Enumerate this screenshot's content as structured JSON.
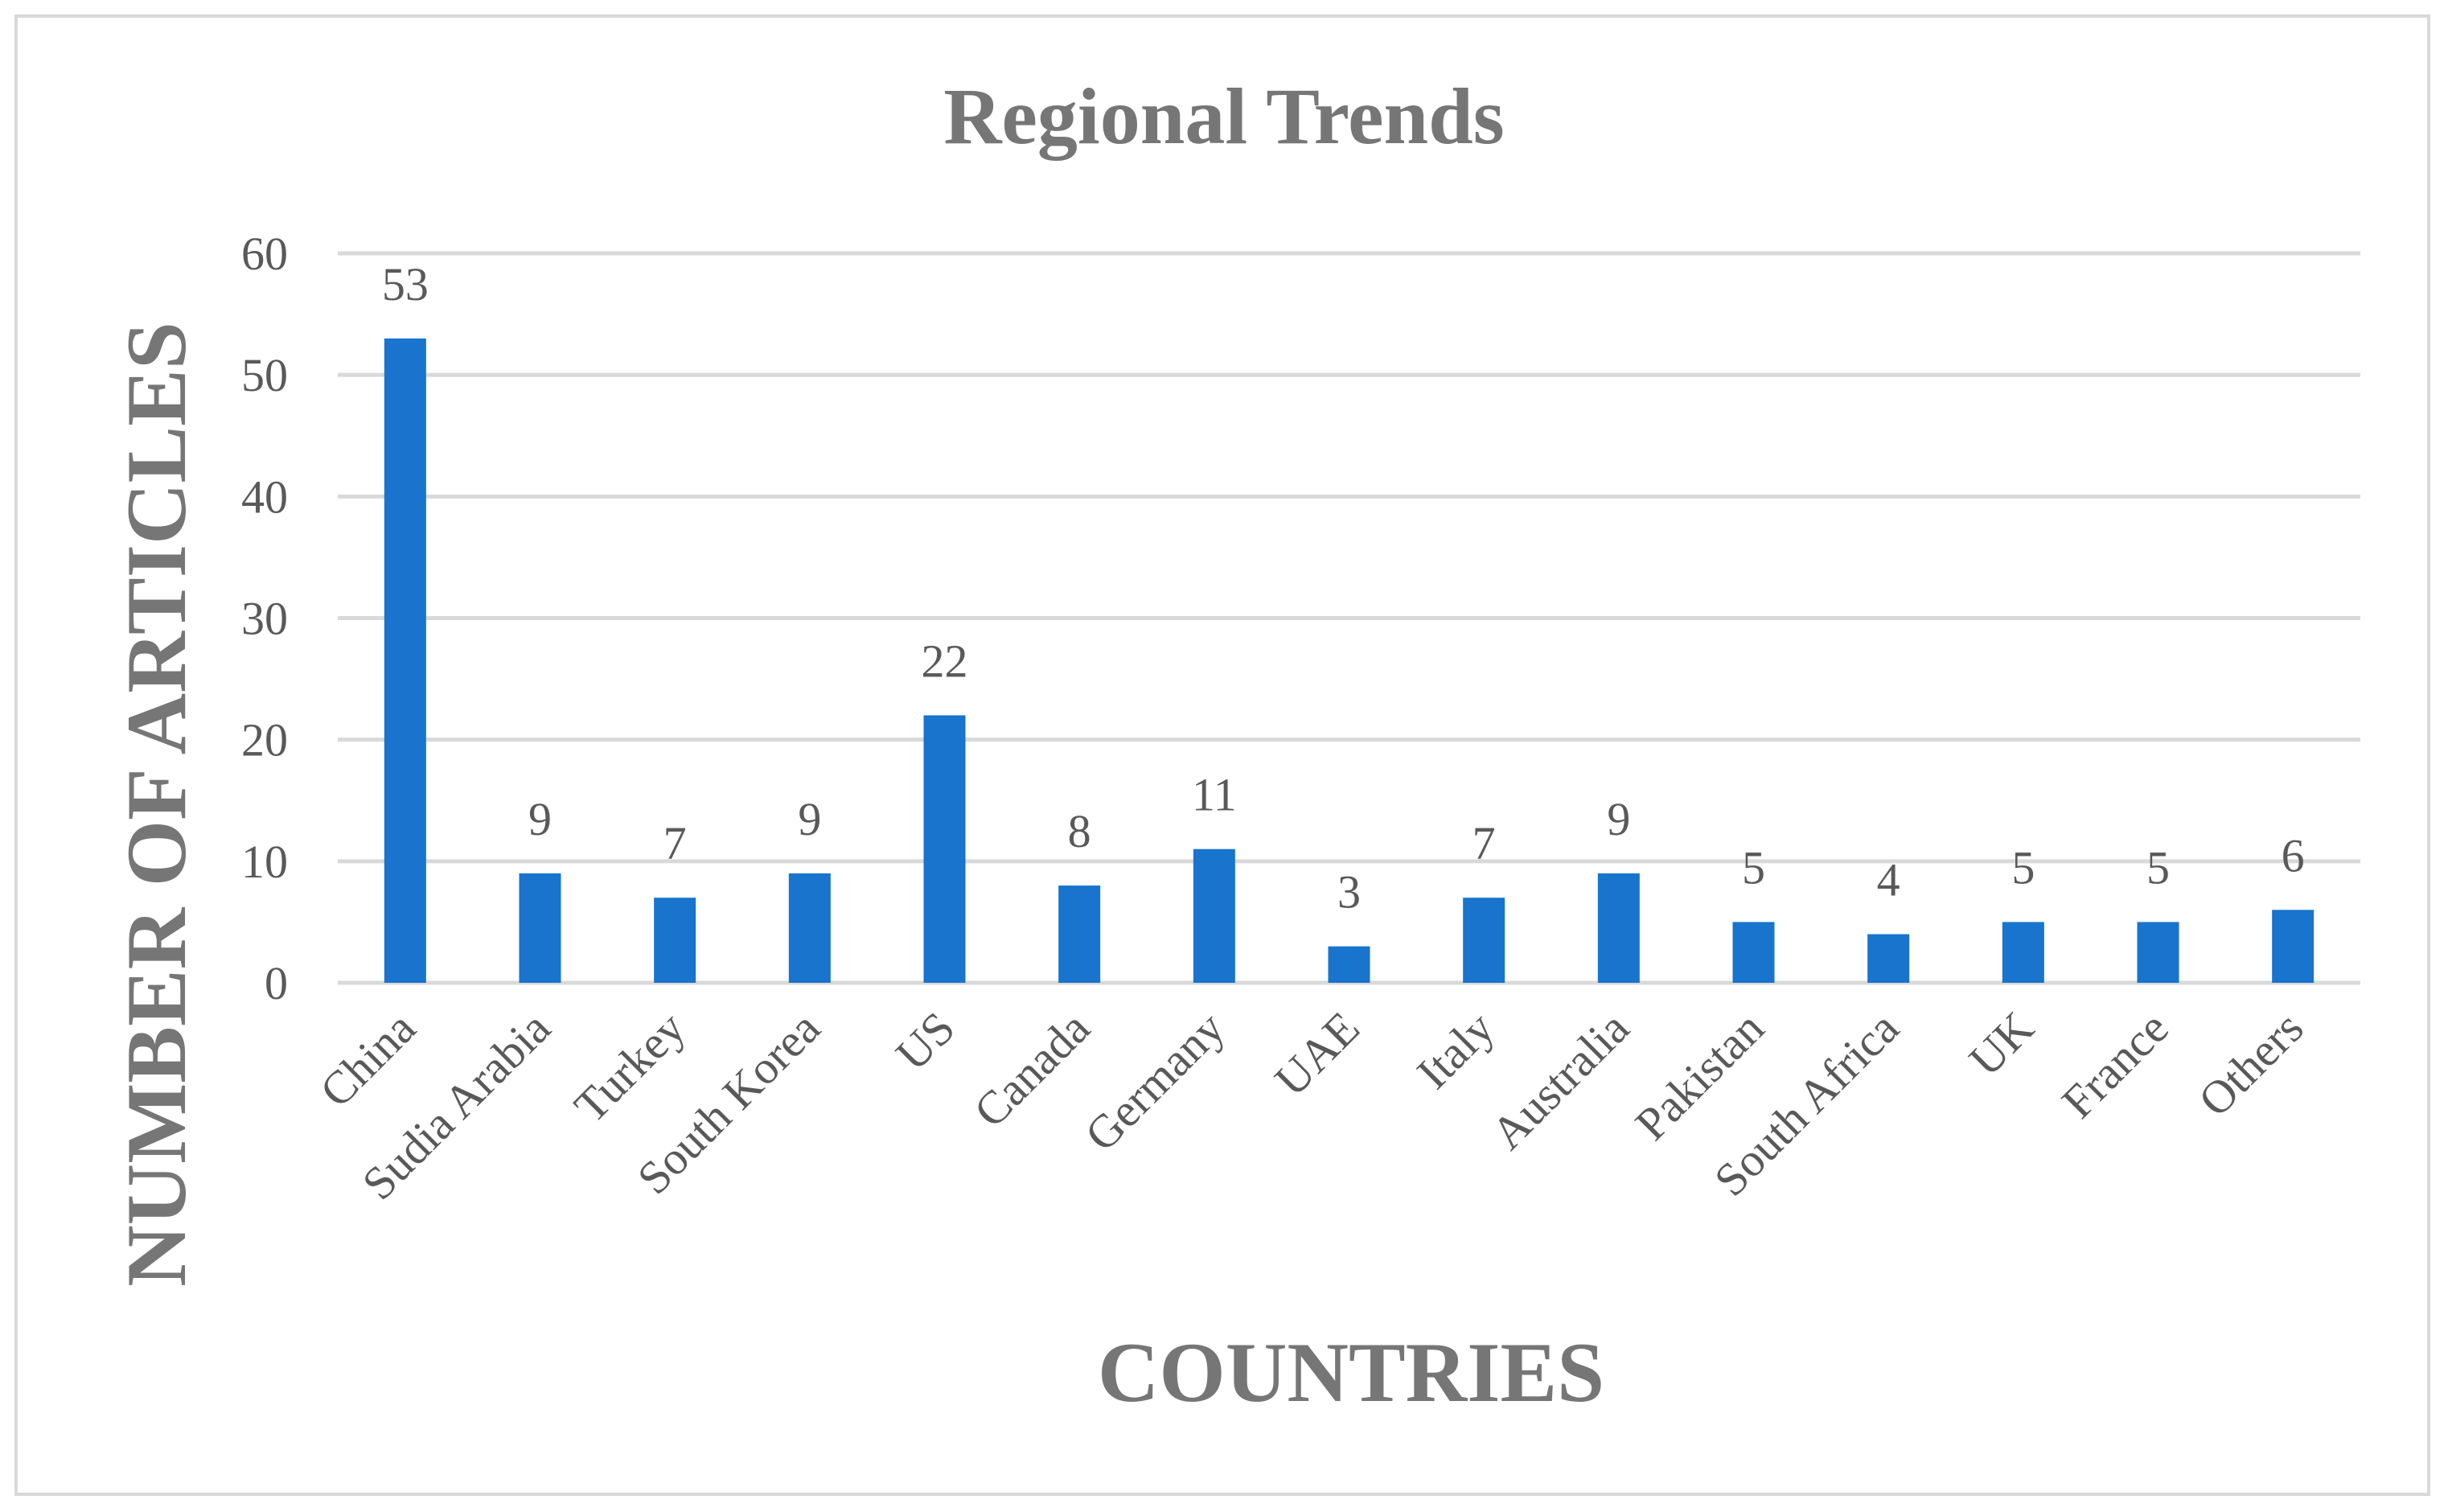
{
  "chart_data": {
    "type": "bar",
    "title": "Regional Trends",
    "xlabel": "COUNTRIES",
    "ylabel": "NUMBER OF ARTICLES",
    "categories": [
      "China",
      "Sudia Arabia",
      "Turkey",
      "South Korea",
      "US",
      "Canada",
      "Germany",
      "UAE",
      "Italy",
      "Australia",
      "Pakistan",
      "South Africa",
      "UK",
      "France",
      "Others"
    ],
    "values": [
      53,
      9,
      7,
      9,
      22,
      8,
      11,
      3,
      7,
      9,
      5,
      4,
      5,
      5,
      6
    ],
    "ylim": [
      0,
      60
    ],
    "yticks": [
      0,
      10,
      20,
      30,
      40,
      50,
      60
    ],
    "grid": true,
    "legend": "none",
    "colors": {
      "bar": "#1874CD",
      "grid": "#D9D9D9",
      "text": "#767676",
      "axis_text": "#595959"
    }
  }
}
